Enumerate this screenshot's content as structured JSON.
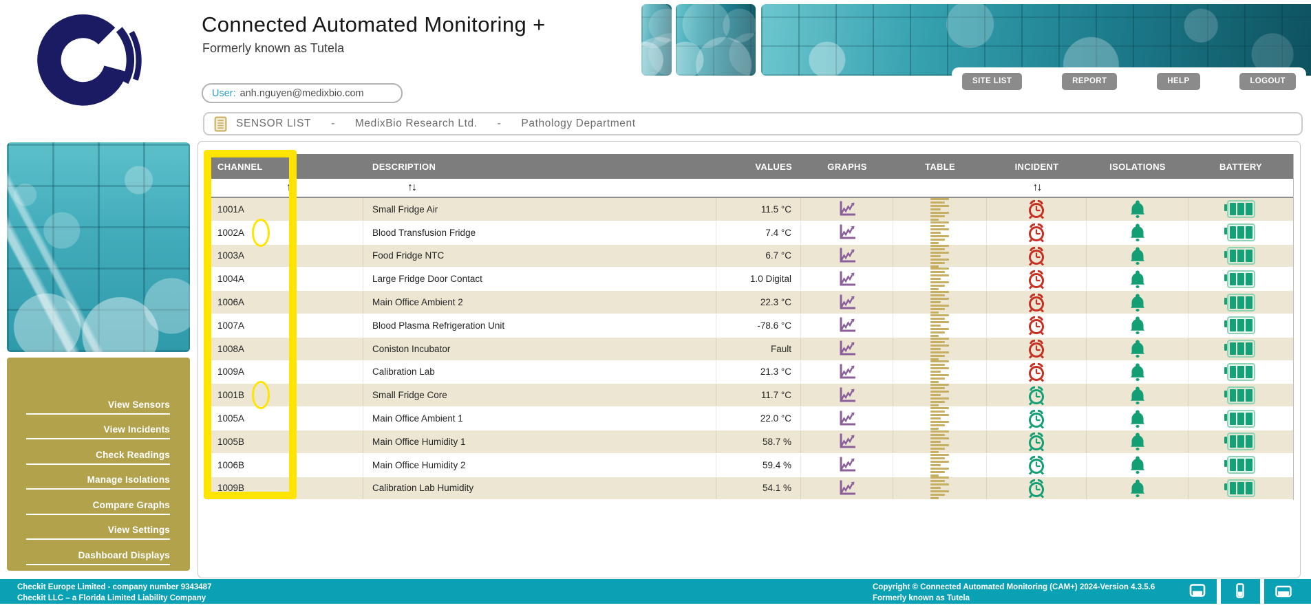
{
  "header": {
    "title": "Connected Automated Monitoring +",
    "subtitle": "Formerly known as Tutela",
    "user_label": "User:",
    "user_email": "anh.nguyen@medixbio.com",
    "nav_buttons": [
      "SITE LIST",
      "REPORT",
      "HELP",
      "LOGOUT"
    ]
  },
  "breadcrumb": {
    "separator": "-",
    "items": [
      "SENSOR LIST",
      "MedixBio Research Ltd.",
      "Pathology Department"
    ]
  },
  "sidebar": {
    "menu": [
      "View Sensors",
      "View Incidents",
      "Check Readings",
      "Manage Isolations",
      "Compare Graphs",
      "View Settings",
      "Dashboard Displays"
    ]
  },
  "table": {
    "columns": [
      "CHANNEL",
      "DESCRIPTION",
      "VALUES",
      "GRAPHS",
      "TABLE",
      "INCIDENT",
      "ISOLATIONS",
      "BATTERY"
    ],
    "sortable_columns": [
      "CHANNEL",
      "DESCRIPTION",
      "INCIDENT"
    ],
    "sort_glyph": "↑↓",
    "rows": [
      {
        "channel": "1001A",
        "description": "Small Fridge Air",
        "value": "11.5 °C",
        "incident": "red",
        "circled": false
      },
      {
        "channel": "1002A",
        "description": "Blood Transfusion Fridge",
        "value": "7.4 °C",
        "incident": "red",
        "circled": true
      },
      {
        "channel": "1003A",
        "description": "Food Fridge NTC",
        "value": "6.7 °C",
        "incident": "red",
        "circled": false
      },
      {
        "channel": "1004A",
        "description": "Large Fridge Door Contact",
        "value": "1.0 Digital",
        "incident": "red",
        "circled": false
      },
      {
        "channel": "1006A",
        "description": "Main Office Ambient 2",
        "value": "22.3 °C",
        "incident": "red",
        "circled": false
      },
      {
        "channel": "1007A",
        "description": "Blood Plasma Refrigeration Unit",
        "value": "-78.6 °C",
        "incident": "red",
        "circled": false
      },
      {
        "channel": "1008A",
        "description": "Coniston Incubator",
        "value": "Fault",
        "incident": "red",
        "circled": false
      },
      {
        "channel": "1009A",
        "description": "Calibration Lab",
        "value": "21.3 °C",
        "incident": "red",
        "circled": false
      },
      {
        "channel": "1001B",
        "description": "Small Fridge Core",
        "value": "11.7 °C",
        "incident": "green",
        "circled": true
      },
      {
        "channel": "1005A",
        "description": "Main Office Ambient 1",
        "value": "22.0 °C",
        "incident": "green",
        "circled": false
      },
      {
        "channel": "1005B",
        "description": "Main Office Humidity 1",
        "value": "58.7 %",
        "incident": "green",
        "circled": false
      },
      {
        "channel": "1006B",
        "description": "Main Office Humidity 2",
        "value": "59.4 %",
        "incident": "green",
        "circled": false
      },
      {
        "channel": "1009B",
        "description": "Calibration Lab Humidity",
        "value": "54.1 %",
        "incident": "green",
        "circled": false
      }
    ]
  },
  "footer": {
    "left_line1": "Checkit Europe Limited - company number 9343487",
    "left_line2": "Checkit LLC – a Florida Limited Liability Company",
    "right_line1": "Copyright © Connected Automated Monitoring (CAM+) 2024-Version 4.3.5.6",
    "right_line2": "Formerly known as Tutela",
    "device_buttons": [
      "desktop-icon",
      "phone-icon",
      "tablet-icon"
    ]
  },
  "colors": {
    "accent_teal": "#0ba1b5",
    "menu_olive": "#b2a24b",
    "highlight_yellow": "#ffe400",
    "incident_red": "#c62f21",
    "status_green": "#139e74",
    "graph_purple": "#8a5f9b",
    "table_gold": "#c6ae62",
    "header_gray": "#7d7d7d",
    "row_beige": "#ede6d3",
    "logo_navy": "#1b1b63"
  }
}
